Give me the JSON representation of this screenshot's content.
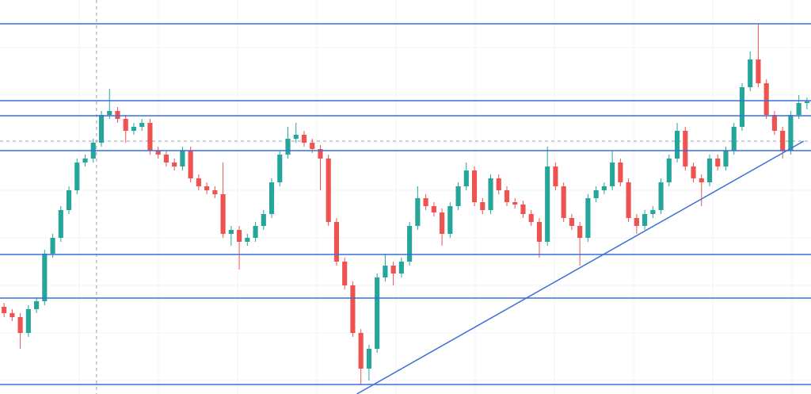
{
  "chart_data": {
    "type": "candlestick",
    "xlim": [
      -0.5,
      99.5
    ],
    "ylim": [
      0,
      497
    ],
    "up_color": "#26a69a",
    "down_color": "#ef5350",
    "line_color": "#3b6fdc",
    "open": [
      110,
      102,
      97,
      77,
      107,
      117,
      177,
      197,
      232,
      257,
      292,
      297,
      317,
      352,
      357,
      347,
      332,
      337,
      342,
      307,
      302,
      292,
      287,
      307,
      272,
      262,
      257,
      252,
      202,
      207,
      192,
      197,
      212,
      227,
      267,
      302,
      322,
      327,
      317,
      309,
      297,
      217,
      167,
      137,
      77,
      32,
      57,
      147,
      162,
      152,
      167,
      212,
      247,
      237,
      229,
      202,
      237,
      262,
      282,
      242,
      232,
      272,
      257,
      242,
      239,
      227,
      217,
      192,
      287,
      262,
      222,
      212,
      197,
      247,
      257,
      262,
      292,
      267,
      222,
      212,
      227,
      232,
      267,
      297,
      332,
      287,
      272,
      267,
      297,
      287,
      307,
      337,
      387,
      422,
      392,
      352,
      332,
      307,
      352,
      367
    ],
    "high": [
      115,
      107,
      102,
      112,
      122,
      182,
      202,
      237,
      262,
      297,
      302,
      322,
      357,
      385,
      362,
      352,
      342,
      347,
      347,
      312,
      307,
      297,
      312,
      312,
      277,
      267,
      262,
      292,
      212,
      212,
      202,
      217,
      232,
      272,
      307,
      337,
      342,
      332,
      322,
      314,
      302,
      222,
      172,
      142,
      82,
      62,
      152,
      177,
      167,
      172,
      217,
      262,
      252,
      242,
      234,
      242,
      267,
      292,
      287,
      247,
      277,
      277,
      262,
      247,
      244,
      232,
      222,
      312,
      292,
      267,
      227,
      217,
      252,
      262,
      267,
      307,
      297,
      272,
      227,
      232,
      237,
      272,
      302,
      342,
      337,
      292,
      277,
      302,
      302,
      312,
      342,
      392,
      432,
      467,
      397,
      357,
      337,
      357,
      377,
      374
    ],
    "low": [
      97,
      92,
      57,
      72,
      102,
      112,
      172,
      192,
      227,
      252,
      287,
      292,
      312,
      347,
      342,
      317,
      327,
      332,
      302,
      297,
      287,
      282,
      282,
      267,
      257,
      252,
      247,
      197,
      187,
      157,
      187,
      192,
      207,
      222,
      262,
      297,
      317,
      312,
      304,
      257,
      212,
      162,
      132,
      72,
      12,
      17,
      52,
      142,
      137,
      147,
      162,
      207,
      232,
      224,
      187,
      197,
      232,
      257,
      237,
      227,
      227,
      252,
      237,
      234,
      222,
      212,
      172,
      187,
      257,
      217,
      207,
      162,
      192,
      242,
      252,
      257,
      262,
      217,
      202,
      207,
      222,
      227,
      262,
      292,
      282,
      267,
      237,
      262,
      282,
      282,
      302,
      332,
      382,
      387,
      347,
      327,
      297,
      302,
      347,
      359
    ],
    "close": [
      102,
      97,
      77,
      107,
      117,
      177,
      197,
      232,
      257,
      292,
      297,
      317,
      352,
      357,
      347,
      332,
      337,
      342,
      307,
      302,
      292,
      287,
      307,
      272,
      262,
      257,
      252,
      202,
      207,
      192,
      197,
      212,
      227,
      267,
      302,
      322,
      327,
      317,
      309,
      297,
      217,
      167,
      137,
      77,
      32,
      57,
      147,
      162,
      152,
      167,
      212,
      247,
      237,
      229,
      202,
      237,
      262,
      282,
      242,
      232,
      272,
      257,
      242,
      239,
      227,
      217,
      192,
      287,
      262,
      222,
      212,
      197,
      247,
      257,
      262,
      292,
      267,
      222,
      212,
      227,
      232,
      267,
      297,
      332,
      287,
      272,
      267,
      297,
      287,
      307,
      337,
      387,
      422,
      392,
      352,
      332,
      307,
      352,
      367,
      369
    ],
    "levels": [
      467,
      370,
      351,
      307,
      176,
      121,
      12
    ],
    "trend_line": {
      "x": [
        43.5,
        98.6
      ],
      "y": [
        0,
        319
      ]
    },
    "crosshair": {
      "x": 11.4,
      "y": 319
    }
  }
}
